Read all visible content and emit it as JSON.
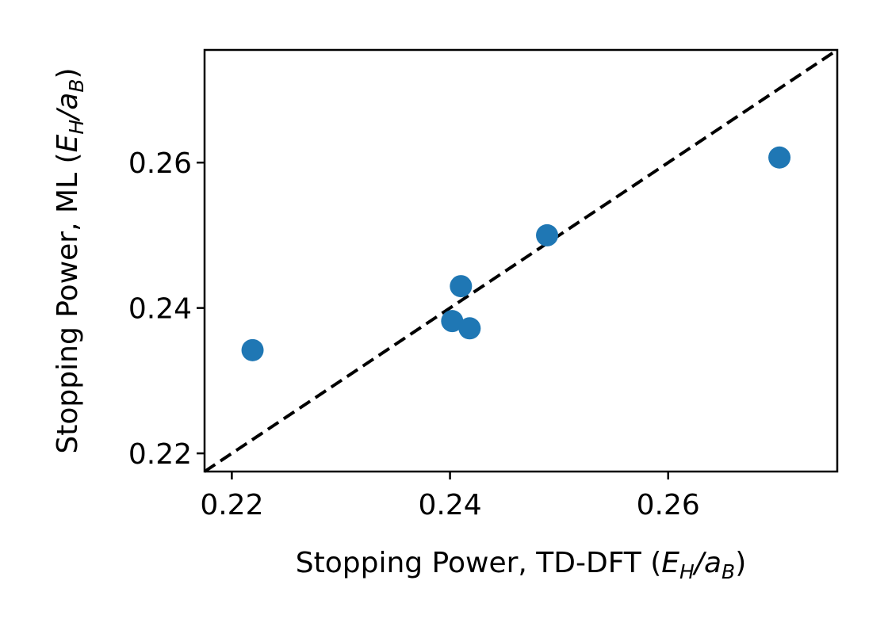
{
  "chart_data": {
    "type": "scatter",
    "title": "",
    "xlabel": {
      "prefix": "Stopping Power, TD-DFT (",
      "unit_E": "E",
      "unit_E_sub": "H",
      "slash": "/",
      "unit_a": "a",
      "unit_a_sub": "B",
      "suffix": ")"
    },
    "ylabel": {
      "prefix": "Stopping Power, ML (",
      "unit_E": "E",
      "unit_E_sub": "H",
      "slash": "/",
      "unit_a": "a",
      "unit_a_sub": "B",
      "suffix": ")"
    },
    "xlim": [
      0.2175,
      0.2755
    ],
    "ylim": [
      0.2175,
      0.2755
    ],
    "xticks": [
      0.22,
      0.24,
      0.26
    ],
    "yticks": [
      0.22,
      0.24,
      0.26
    ],
    "xtick_labels": [
      "0.22",
      "0.24",
      "0.26"
    ],
    "ytick_labels": [
      "0.22",
      "0.24",
      "0.26"
    ],
    "grid": false,
    "points_color": "#1f77b4",
    "reference_line": {
      "style": "dashed",
      "color": "#000000",
      "from": [
        0.2175,
        0.2175
      ],
      "to": [
        0.2755,
        0.2755
      ]
    },
    "points": [
      {
        "x": 0.2219,
        "y": 0.2342
      },
      {
        "x": 0.2402,
        "y": 0.2382
      },
      {
        "x": 0.241,
        "y": 0.243
      },
      {
        "x": 0.2418,
        "y": 0.2372
      },
      {
        "x": 0.2489,
        "y": 0.25
      },
      {
        "x": 0.2702,
        "y": 0.2607
      }
    ]
  }
}
